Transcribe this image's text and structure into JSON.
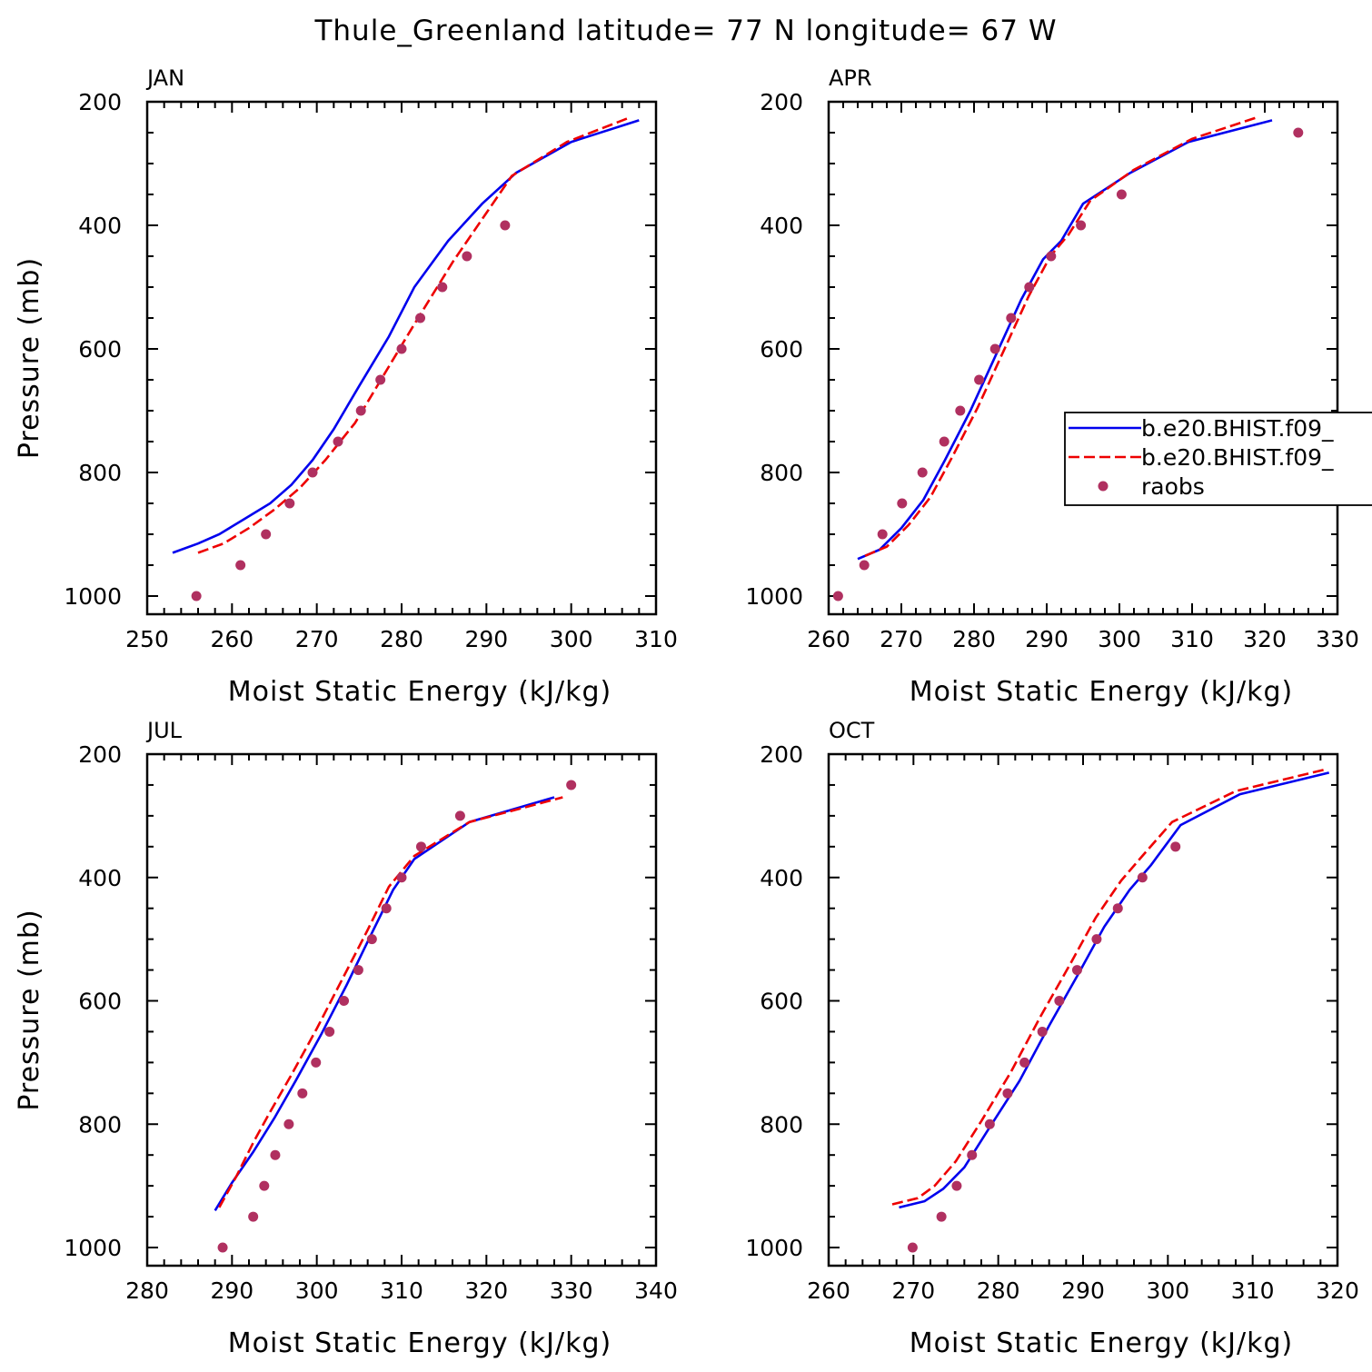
{
  "figure": {
    "title": "Thule_Greenland  latitude= 77 N longitude= 67 W"
  },
  "colors": {
    "series_1": "#0000ee",
    "series_2": "#ee0000",
    "raobs": "#b03060",
    "axes": "#000000"
  },
  "chart_data": [
    {
      "type": "line",
      "title": "JAN",
      "xlabel": "Moist Static Energy (kJ/kg)",
      "ylabel": "Pressure (mb)",
      "xlim": [
        250,
        310
      ],
      "ylim": [
        1000,
        200
      ],
      "xticks": [
        250,
        260,
        270,
        280,
        290,
        300,
        310
      ],
      "yticks": [
        1000,
        800,
        600,
        400,
        200
      ],
      "series": [
        {
          "name": "b.e20.BHIST.f09_",
          "style": "solid",
          "x": [
            253.0,
            256.0,
            258.5,
            261.5,
            264.5,
            267.0,
            269.5,
            272.0,
            275.0,
            278.5,
            281.5,
            285.5,
            289.5,
            293.5,
            300.0,
            308.0
          ],
          "y": [
            930,
            915,
            900,
            875,
            850,
            820,
            780,
            730,
            660,
            580,
            500,
            425,
            365,
            315,
            265,
            230
          ]
        },
        {
          "name": "b.e20.BHIST.f09_",
          "style": "dashed",
          "x": [
            256.0,
            259.0,
            262.0,
            265.0,
            268.0,
            271.0,
            274.5,
            278.0,
            281.5,
            286.0,
            290.0,
            293.0,
            299.5,
            307.0
          ],
          "y": [
            930,
            915,
            890,
            860,
            825,
            780,
            720,
            640,
            560,
            460,
            380,
            320,
            265,
            225
          ]
        },
        {
          "name": "raobs",
          "style": "dots",
          "x": [
            255.8,
            261.0,
            264.0,
            266.8,
            269.5,
            272.5,
            275.2,
            277.5,
            280.0,
            282.2,
            284.8,
            287.7,
            292.2
          ],
          "y": [
            1000,
            950,
            900,
            850,
            800,
            750,
            700,
            650,
            600,
            550,
            500,
            450,
            400
          ]
        }
      ]
    },
    {
      "type": "line",
      "title": "APR",
      "xlabel": "Moist Static Energy (kJ/kg)",
      "ylabel": "",
      "xlim": [
        260,
        330
      ],
      "ylim": [
        1000,
        200
      ],
      "xticks": [
        260,
        270,
        280,
        290,
        300,
        310,
        320,
        330
      ],
      "yticks": [
        1000,
        800,
        600,
        400,
        200
      ],
      "series": [
        {
          "name": "b.e20.BHIST.f09_",
          "style": "solid",
          "x": [
            264.0,
            267.0,
            270.0,
            273.0,
            276.0,
            279.5,
            283.0,
            286.5,
            289.5,
            292.0,
            295.0,
            301.5,
            309.5,
            321.0
          ],
          "y": [
            940,
            925,
            890,
            845,
            780,
            700,
            610,
            520,
            455,
            425,
            365,
            315,
            265,
            230
          ]
        },
        {
          "name": "b.e20.BHIST.f09_",
          "style": "dashed",
          "x": [
            265.0,
            268.0,
            271.0,
            274.0,
            277.0,
            280.5,
            284.0,
            287.5,
            290.5,
            293.0,
            296.0,
            302.0,
            310.0,
            319.0
          ],
          "y": [
            935,
            920,
            885,
            840,
            775,
            695,
            605,
            515,
            450,
            415,
            360,
            310,
            260,
            225
          ]
        },
        {
          "name": "raobs",
          "style": "dots",
          "x": [
            261.3,
            264.9,
            267.4,
            270.1,
            272.9,
            275.9,
            278.1,
            280.7,
            282.9,
            285.1,
            287.6,
            290.6,
            294.7,
            300.3,
            324.6
          ],
          "y": [
            1000,
            950,
            900,
            850,
            800,
            750,
            700,
            650,
            600,
            550,
            500,
            450,
            400,
            350,
            250
          ]
        }
      ]
    },
    {
      "type": "line",
      "title": "JUL",
      "xlabel": "Moist Static Energy (kJ/kg)",
      "ylabel": "Pressure (mb)",
      "xlim": [
        280,
        340
      ],
      "ylim": [
        1000,
        200
      ],
      "xticks": [
        280,
        290,
        300,
        310,
        320,
        330,
        340
      ],
      "yticks": [
        1000,
        800,
        600,
        400,
        200
      ],
      "series": [
        {
          "name": "b.e20.BHIST.f09_",
          "style": "solid",
          "x": [
            288.0,
            290.0,
            292.5,
            295.0,
            297.5,
            300.5,
            303.5,
            306.5,
            309.0,
            311.5,
            318.0,
            328.0
          ],
          "y": [
            940,
            895,
            845,
            790,
            730,
            655,
            575,
            490,
            420,
            370,
            310,
            270
          ]
        },
        {
          "name": "b.e20.BHIST.f09_",
          "style": "dashed",
          "x": [
            288.5,
            290.5,
            292.5,
            294.5,
            297.0,
            300.0,
            303.0,
            306.0,
            308.5,
            311.5,
            318.0,
            329.0
          ],
          "y": [
            935,
            885,
            830,
            780,
            720,
            645,
            565,
            485,
            415,
            365,
            310,
            270
          ]
        },
        {
          "name": "raobs",
          "style": "dots",
          "x": [
            288.9,
            292.5,
            293.8,
            295.1,
            296.7,
            298.3,
            299.9,
            301.5,
            303.2,
            304.9,
            306.5,
            308.2,
            310.0,
            312.3,
            316.9,
            330.0
          ],
          "y": [
            1000,
            950,
            900,
            850,
            800,
            750,
            700,
            650,
            600,
            550,
            500,
            450,
            400,
            350,
            300,
            250
          ]
        }
      ]
    },
    {
      "type": "line",
      "title": "OCT",
      "xlabel": "Moist Static Energy (kJ/kg)",
      "ylabel": "",
      "xlim": [
        260,
        320
      ],
      "ylim": [
        1000,
        200
      ],
      "xticks": [
        260,
        270,
        280,
        290,
        300,
        310,
        320
      ],
      "yticks": [
        1000,
        800,
        600,
        400,
        200
      ],
      "series": [
        {
          "name": "b.e20.BHIST.f09_",
          "style": "solid",
          "x": [
            268.3,
            271.3,
            273.5,
            276.0,
            279.0,
            282.5,
            286.0,
            289.5,
            292.5,
            295.5,
            298.0,
            301.5,
            308.5,
            319.0
          ],
          "y": [
            935,
            925,
            905,
            870,
            805,
            730,
            640,
            555,
            480,
            420,
            380,
            315,
            265,
            230
          ]
        },
        {
          "name": "b.e20.BHIST.f09_",
          "style": "dashed",
          "x": [
            267.5,
            270.5,
            272.5,
            275.0,
            278.0,
            281.5,
            285.0,
            288.5,
            291.5,
            294.5,
            297.0,
            300.5,
            308.0,
            318.5
          ],
          "y": [
            930,
            920,
            900,
            860,
            795,
            715,
            625,
            540,
            465,
            405,
            365,
            310,
            260,
            225
          ]
        },
        {
          "name": "raobs",
          "style": "dots",
          "x": [
            269.9,
            273.3,
            275.1,
            276.9,
            279.0,
            281.1,
            283.1,
            285.2,
            287.2,
            289.3,
            291.6,
            294.1,
            297.0,
            300.9
          ],
          "y": [
            1000,
            950,
            900,
            850,
            800,
            750,
            700,
            650,
            600,
            550,
            500,
            450,
            400,
            350
          ]
        }
      ]
    }
  ],
  "legend": {
    "placement": "right",
    "entries": [
      {
        "label": "b.e20.BHIST.f09_",
        "style": "solid"
      },
      {
        "label": "b.e20.BHIST.f09_",
        "style": "dashed"
      },
      {
        "label": "raobs",
        "style": "dots"
      }
    ]
  }
}
